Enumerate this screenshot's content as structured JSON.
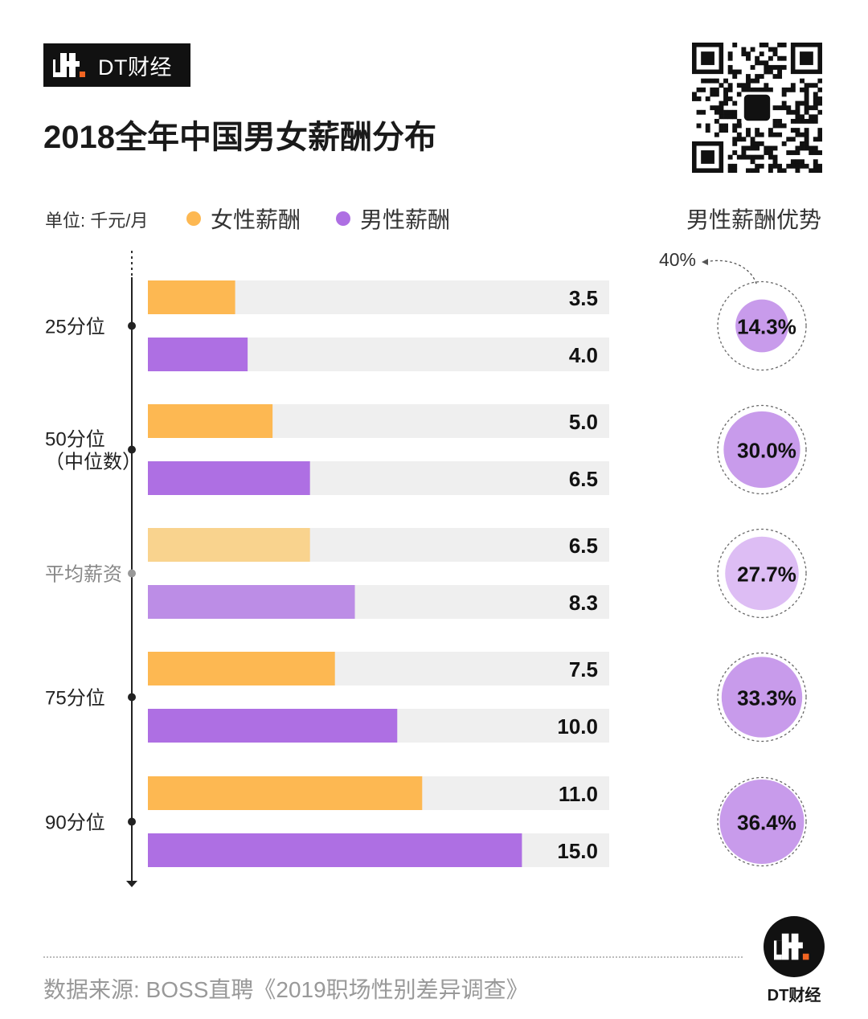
{
  "header": {
    "brand": "DT财经",
    "title": "2018全年中国男女薪酬分布"
  },
  "legend": {
    "unit": "单位: 千元/月",
    "female": "女性薪酬",
    "male": "男性薪酬",
    "advantage_title": "男性薪酬优势"
  },
  "colors": {
    "female": "#FDB852",
    "male": "#AE6FE3",
    "female_light": "#F9D38E",
    "male_light": "#BC8DE6",
    "track": "#EFEFEF",
    "circle": "#C89BEB",
    "circle_light": "#DDBDF4"
  },
  "chart_data": {
    "type": "bar",
    "title": "2018全年中国男女薪酬分布",
    "unit": "千元/月",
    "xlim": [
      0,
      18.5
    ],
    "categories": [
      "25分位",
      "50分位\n(中位数)",
      "平均薪资",
      "75分位",
      "90分位"
    ],
    "category_lines": [
      [
        "25分位"
      ],
      [
        "50分位",
        "（中位数）"
      ],
      [
        "平均薪资"
      ],
      [
        "75分位"
      ],
      [
        "90分位"
      ]
    ],
    "series": [
      {
        "name": "女性薪酬",
        "values": [
          3.5,
          5.0,
          6.5,
          7.5,
          11.0
        ],
        "labels": [
          "3.5",
          "5.0",
          "6.5",
          "7.5",
          "11.0"
        ]
      },
      {
        "name": "男性薪酬",
        "values": [
          4.0,
          6.5,
          8.3,
          10.0,
          15.0
        ],
        "labels": [
          "4.0",
          "6.5",
          "8.3",
          "10.0",
          "15.0"
        ]
      }
    ],
    "male_advantage": {
      "title": "男性薪酬优势",
      "values": [
        14.3,
        30.0,
        27.7,
        33.3,
        36.4
      ],
      "labels": [
        "14.3%",
        "30.0%",
        "27.7%",
        "33.3%",
        "36.4%"
      ],
      "reference_label": "40%",
      "reference_value": 40
    },
    "highlight_muted": [
      false,
      false,
      true,
      false,
      false
    ]
  },
  "footer": {
    "source": "数据来源: BOSS直聘《2019职场性别差异调查》",
    "brand": "DT财经"
  }
}
